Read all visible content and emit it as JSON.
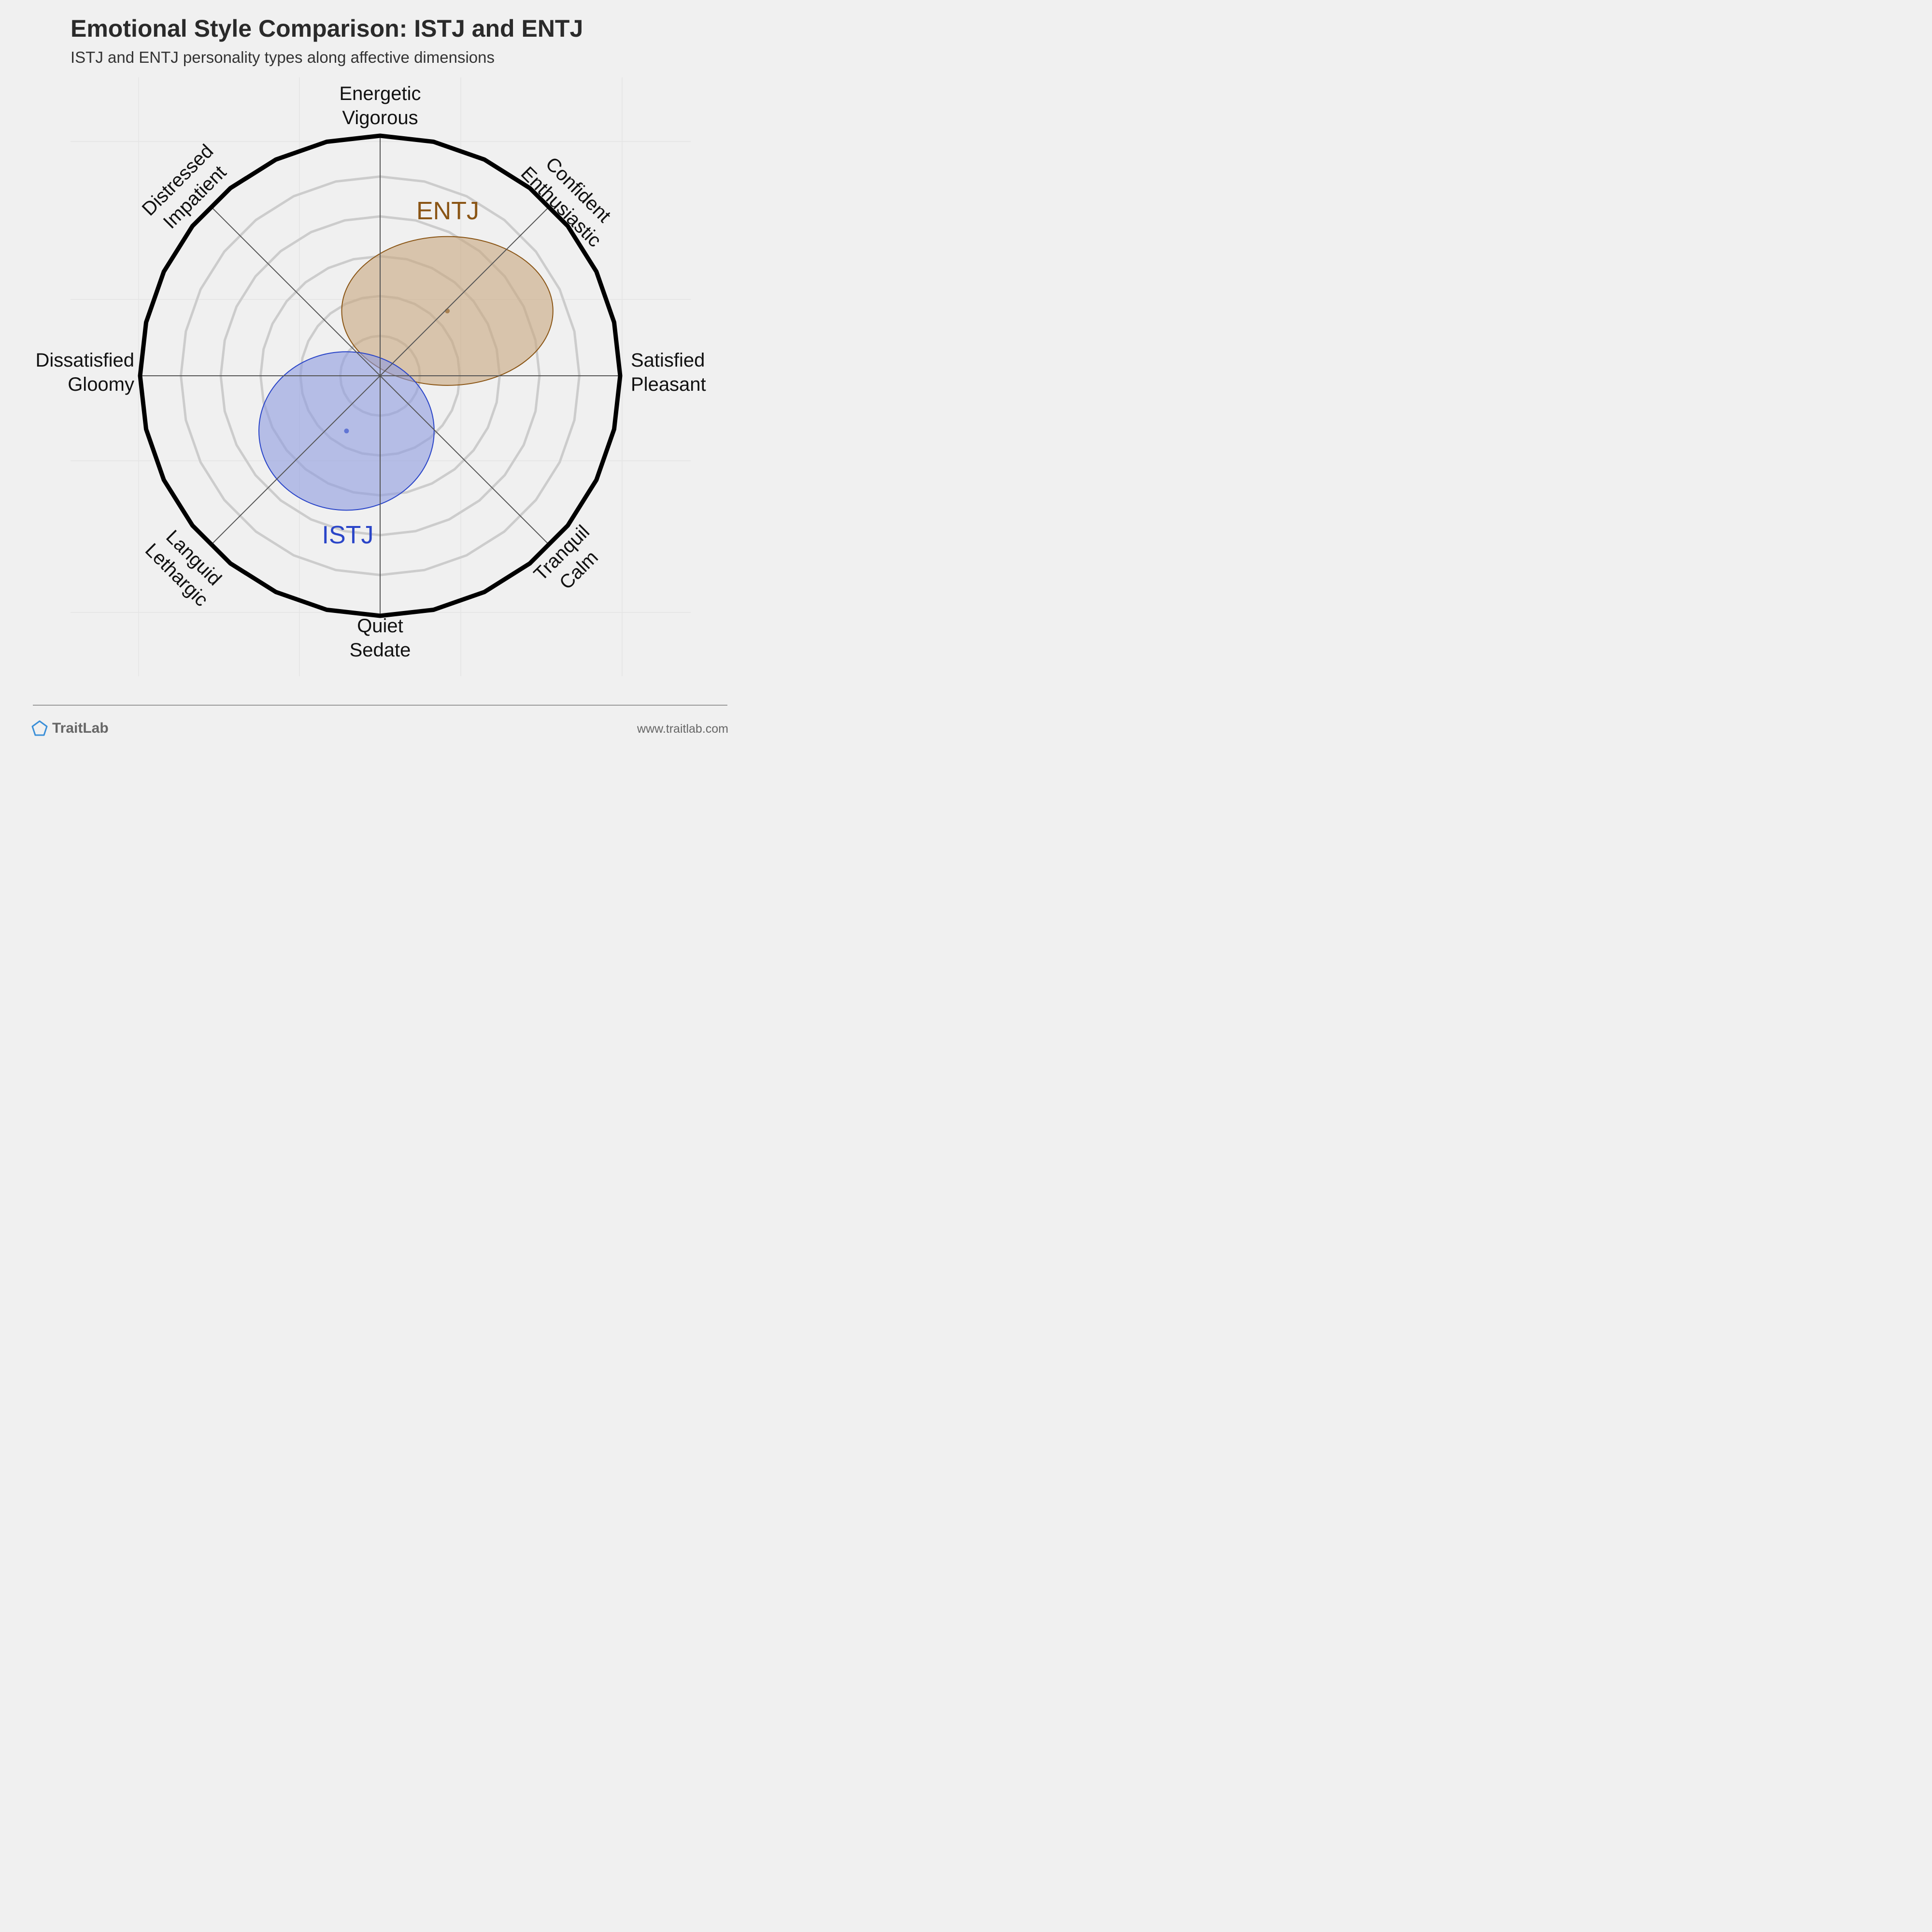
{
  "header": {
    "title": "Emotional Style Comparison: ISTJ and ENTJ",
    "subtitle": "ISTJ and ENTJ personality types along affective dimensions"
  },
  "chart_data": {
    "type": "scatter",
    "description": "circumplex",
    "axes": [
      {
        "angle": 90,
        "lines": [
          "Energetic",
          "Vigorous"
        ]
      },
      {
        "angle": 45,
        "lines": [
          "Confident",
          "Enthusiastic"
        ]
      },
      {
        "angle": 0,
        "lines": [
          "Satisfied",
          "Pleasant"
        ]
      },
      {
        "angle": -45,
        "lines": [
          "Tranquil",
          "Calm"
        ]
      },
      {
        "angle": -90,
        "lines": [
          "Quiet",
          "Sedate"
        ]
      },
      {
        "angle": -135,
        "lines": [
          "Languid",
          "Lethargic"
        ]
      },
      {
        "angle": 180,
        "lines": [
          "Dissatisfied",
          "Gloomy"
        ]
      },
      {
        "angle": 135,
        "lines": [
          "Distressed",
          "Impatient"
        ]
      }
    ],
    "xlim": [
      -1,
      1
    ],
    "ylim": [
      -1,
      1
    ],
    "rings": 6,
    "series": [
      {
        "name": "ENTJ",
        "x": 0.28,
        "y": 0.27,
        "rx": 0.44,
        "ry": 0.31,
        "color": "#8a5515",
        "fill": "#c8a67f"
      },
      {
        "name": "ISTJ",
        "x": -0.14,
        "y": -0.23,
        "rx": 0.365,
        "ry": 0.33,
        "color": "#2a45c8",
        "fill": "#8d9be0"
      }
    ]
  },
  "footer": {
    "brand": "TraitLab",
    "url": "www.traitlab.com"
  },
  "colors": {
    "background": "#f0f0f0",
    "outer_ring": "#000000",
    "inner_rings": "#cccccc",
    "brand_icon": "#3a8fd8"
  }
}
